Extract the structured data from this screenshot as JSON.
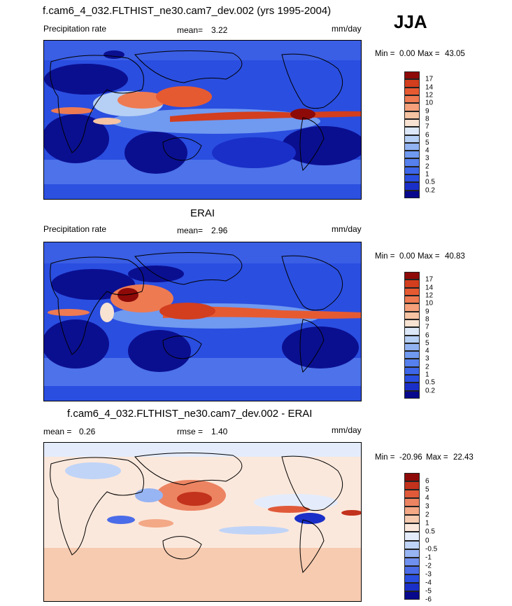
{
  "season": "JJA",
  "panels": [
    {
      "id": "model",
      "title": "f.cam6_4_032.FLTHIST_ne30.cam7_dev.002 (yrs 1995-2004)",
      "left_label": "Precipitation rate",
      "stat_label": "mean=",
      "stat_value": "3.22",
      "stat2_label": "",
      "stat2_value": "",
      "units": "mm/day",
      "min_label": "Min =",
      "min_value": "0.00",
      "max_label": "Max =",
      "max_value": "43.05"
    },
    {
      "id": "obs",
      "title": "ERAI",
      "left_label": "Precipitation rate",
      "stat_label": "mean=",
      "stat_value": "2.96",
      "stat2_label": "",
      "stat2_value": "",
      "units": "mm/day",
      "min_label": "Min =",
      "min_value": "0.00",
      "max_label": "Max =",
      "max_value": "40.83"
    },
    {
      "id": "diff",
      "title": "f.cam6_4_032.FLTHIST_ne30.cam7_dev.002 - ERAI",
      "left_label": "mean =",
      "stat_label": "",
      "stat_value": "0.26",
      "stat2_label": "rmse =",
      "stat2_value": "1.40",
      "units": "mm/day",
      "min_label": "Min =",
      "min_value": "-20.96",
      "max_label": "Max =",
      "max_value": "22.43"
    }
  ],
  "chart_data": [
    {
      "type": "heatmap",
      "title": "f.cam6_4_032.FLTHIST_ne30.cam7_dev.002 (yrs 1995-2004)",
      "variable": "Precipitation rate",
      "units": "mm/day",
      "mean": 3.22,
      "min": 0.0,
      "max": 43.05,
      "colorbar_levels": [
        "0.2",
        "0.5",
        "1",
        "2",
        "3",
        "4",
        "5",
        "6",
        "7",
        "8",
        "9",
        "10",
        "12",
        "14",
        "17"
      ],
      "colorbar_colors": [
        "#08088c",
        "#1a2fc8",
        "#2a4ee0",
        "#3d66e8",
        "#5580ee",
        "#7099f0",
        "#92b3f2",
        "#b6cff5",
        "#dce8f8",
        "#f8e2d2",
        "#f6c3a3",
        "#f4a07a",
        "#ee7a52",
        "#e65a32",
        "#d23e1e",
        "#8e0a08"
      ]
    },
    {
      "type": "heatmap",
      "title": "ERAI",
      "variable": "Precipitation rate",
      "units": "mm/day",
      "mean": 2.96,
      "min": 0.0,
      "max": 40.83,
      "colorbar_levels": [
        "0.2",
        "0.5",
        "1",
        "2",
        "3",
        "4",
        "5",
        "6",
        "7",
        "8",
        "9",
        "10",
        "12",
        "14",
        "17"
      ],
      "colorbar_colors": [
        "#08088c",
        "#1a2fc8",
        "#2a4ee0",
        "#3d66e8",
        "#5580ee",
        "#7099f0",
        "#92b3f2",
        "#b6cff5",
        "#dce8f8",
        "#f8e2d2",
        "#f6c3a3",
        "#f4a07a",
        "#ee7a52",
        "#e65a32",
        "#d23e1e",
        "#8e0a08"
      ]
    },
    {
      "type": "heatmap",
      "title": "f.cam6_4_032.FLTHIST_ne30.cam7_dev.002 - ERAI",
      "units": "mm/day",
      "mean": 0.26,
      "rmse": 1.4,
      "min": -20.96,
      "max": 22.43,
      "colorbar_levels": [
        "-6",
        "-5",
        "-4",
        "-3",
        "-2",
        "-1",
        "-0.5",
        "0",
        "0.5",
        "1",
        "2",
        "3",
        "4",
        "5",
        "6"
      ],
      "colorbar_colors": [
        "#08088c",
        "#1a2fc8",
        "#2a4ee0",
        "#4a6ce8",
        "#6f90ee",
        "#97b4f3",
        "#c0d4f7",
        "#e4ecfb",
        "#fbe8dc",
        "#f7cbb0",
        "#f3a886",
        "#ec8462",
        "#e05a3a",
        "#c2321c",
        "#8e0a08"
      ]
    }
  ]
}
